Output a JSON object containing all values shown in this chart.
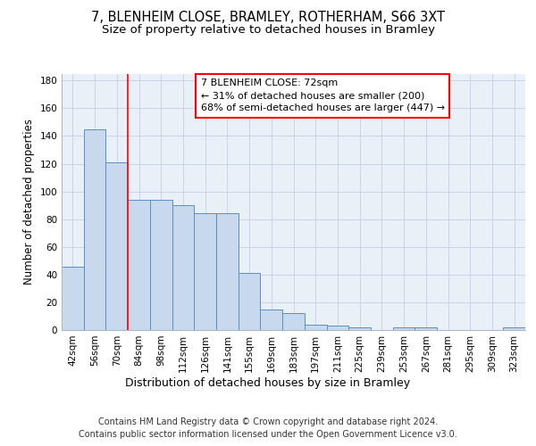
{
  "title_line1": "7, BLENHEIM CLOSE, BRAMLEY, ROTHERHAM, S66 3XT",
  "title_line2": "Size of property relative to detached houses in Bramley",
  "dist_label": "Distribution of detached houses by size in Bramley",
  "ylabel": "Number of detached properties",
  "categories": [
    "42sqm",
    "56sqm",
    "70sqm",
    "84sqm",
    "98sqm",
    "112sqm",
    "126sqm",
    "141sqm",
    "155sqm",
    "169sqm",
    "183sqm",
    "197sqm",
    "211sqm",
    "225sqm",
    "239sqm",
    "253sqm",
    "267sqm",
    "281sqm",
    "295sqm",
    "309sqm",
    "323sqm"
  ],
  "values": [
    46,
    145,
    121,
    94,
    94,
    90,
    84,
    84,
    41,
    15,
    12,
    4,
    3,
    2,
    0,
    2,
    2,
    0,
    0,
    0,
    2
  ],
  "bar_color": "#c8d9ee",
  "bar_edge_color": "#5a8fc2",
  "grid_color": "#c8d4e8",
  "background_color": "#eaf0f8",
  "vline_x": 2.5,
  "annotation_text": "7 BLENHEIM CLOSE: 72sqm\n← 31% of detached houses are smaller (200)\n68% of semi-detached houses are larger (447) →",
  "annotation_box_facecolor": "white",
  "annotation_box_edgecolor": "red",
  "ylim": [
    0,
    185
  ],
  "yticks": [
    0,
    20,
    40,
    60,
    80,
    100,
    120,
    140,
    160,
    180
  ],
  "footer_line1": "Contains HM Land Registry data © Crown copyright and database right 2024.",
  "footer_line2": "Contains public sector information licensed under the Open Government Licence v3.0.",
  "title_fontsize": 10.5,
  "subtitle_fontsize": 9.5,
  "tick_fontsize": 7.5,
  "ylabel_fontsize": 8.5,
  "dist_label_fontsize": 9,
  "annotation_fontsize": 8,
  "footer_fontsize": 7
}
